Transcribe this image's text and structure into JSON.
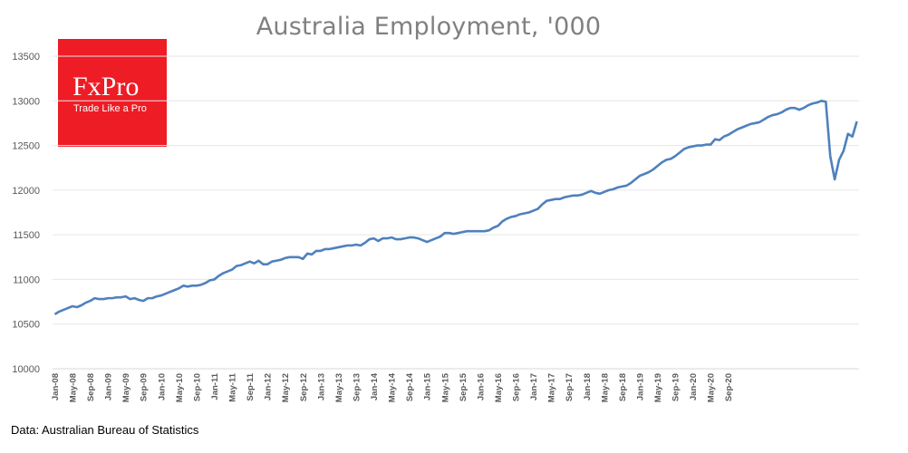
{
  "logo": {
    "brand": "FxPro",
    "tagline": "Trade Like a Pro"
  },
  "source_note": "Data: Australian Bureau of Statistics",
  "colors": {
    "line": "#4f81bd",
    "grid": "#e6e6e6",
    "logo_bg": "#ee1c25"
  },
  "chart_data": {
    "type": "line",
    "title": "Australia Employment, '000",
    "xlabel": "",
    "ylabel": "",
    "ylim": [
      10000,
      13500
    ],
    "yticks": [
      10000,
      10500,
      11000,
      11500,
      12000,
      12500,
      13000,
      13500
    ],
    "grid": true,
    "x_start": "Jan-08",
    "x_tick_labels": [
      "Jan-08",
      "May-08",
      "Sep-08",
      "Jan-09",
      "May-09",
      "Sep-09",
      "Jan-10",
      "May-10",
      "Sep-10",
      "Jan-11",
      "May-11",
      "Sep-11",
      "Jan-12",
      "May-12",
      "Sep-12",
      "Jan-13",
      "May-13",
      "Sep-13",
      "Jan-14",
      "May-14",
      "Sep-14",
      "Jan-15",
      "May-15",
      "Sep-15",
      "Jan-16",
      "May-16",
      "Sep-16",
      "Jan-17",
      "May-17",
      "Sep-17",
      "Jan-18",
      "May-18",
      "Sep-18",
      "Jan-19",
      "May-19",
      "Sep-19",
      "Jan-20",
      "May-20",
      "Sep-20"
    ],
    "series": [
      {
        "values": [
          10610,
          10640,
          10660,
          10680,
          10700,
          10690,
          10710,
          10740,
          10760,
          10790,
          10780,
          10780,
          10790,
          10790,
          10800,
          10800,
          10810,
          10780,
          10790,
          10770,
          10760,
          10790,
          10790,
          10810,
          10820,
          10840,
          10860,
          10880,
          10900,
          10930,
          10920,
          10930,
          10930,
          10940,
          10960,
          10990,
          11000,
          11040,
          11070,
          11090,
          11110,
          11150,
          11160,
          11180,
          11200,
          11180,
          11210,
          11170,
          11170,
          11200,
          11210,
          11220,
          11240,
          11250,
          11250,
          11250,
          11230,
          11290,
          11280,
          11320,
          11320,
          11340,
          11340,
          11350,
          11360,
          11370,
          11380,
          11380,
          11390,
          11380,
          11410,
          11450,
          11460,
          11430,
          11460,
          11460,
          11470,
          11450,
          11450,
          11460,
          11470,
          11470,
          11460,
          11440,
          11420,
          11440,
          11460,
          11480,
          11520,
          11520,
          11510,
          11520,
          11530,
          11540,
          11540,
          11540,
          11540,
          11540,
          11550,
          11580,
          11600,
          11650,
          11680,
          11700,
          11710,
          11730,
          11740,
          11750,
          11770,
          11790,
          11840,
          11880,
          11890,
          11900,
          11900,
          11920,
          11930,
          11940,
          11940,
          11950,
          11970,
          11990,
          11970,
          11960,
          11980,
          12000,
          12010,
          12030,
          12040,
          12050,
          12080,
          12120,
          12160,
          12180,
          12200,
          12230,
          12270,
          12310,
          12340,
          12350,
          12380,
          12420,
          12460,
          12480,
          12490,
          12500,
          12500,
          12510,
          12510,
          12570,
          12560,
          12600,
          12620,
          12650,
          12680,
          12700,
          12720,
          12740,
          12750,
          12760,
          12790,
          12820,
          12840,
          12850,
          12870,
          12900,
          12920,
          12920,
          12900,
          12920,
          12950,
          12970,
          12980,
          13000,
          12990,
          12380,
          12120,
          12340,
          12440,
          12630,
          12600,
          12770
        ]
      }
    ]
  }
}
